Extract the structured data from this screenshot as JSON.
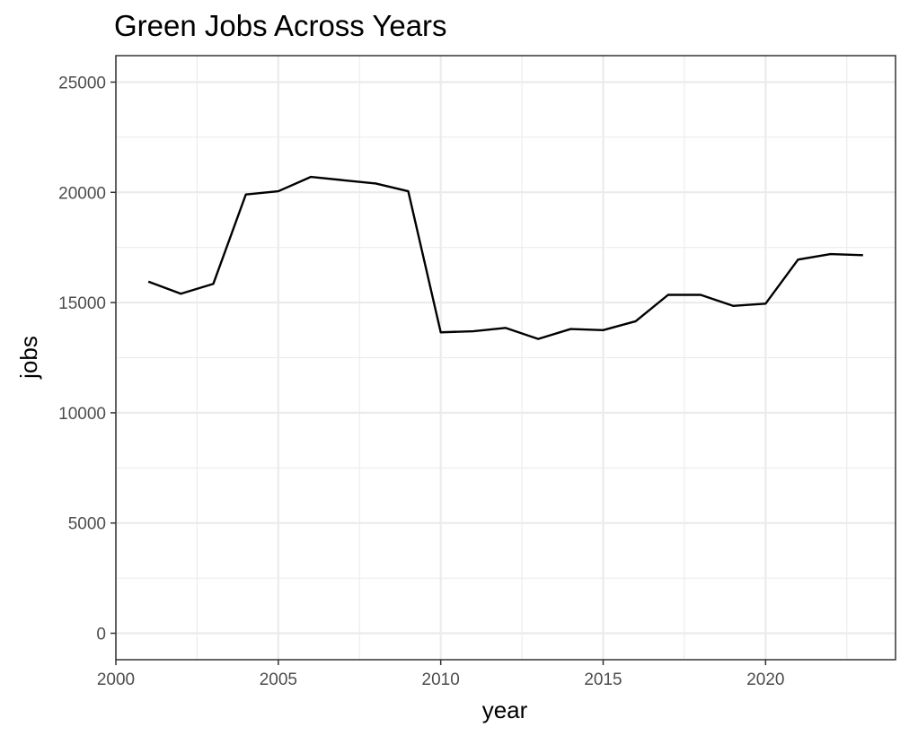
{
  "chart_data": {
    "type": "line",
    "title": "Green Jobs Across Years",
    "xlabel": "year",
    "ylabel": "jobs",
    "xlim": [
      2000,
      2024
    ],
    "ylim": [
      -1200,
      26200
    ],
    "x_ticks": [
      2000,
      2005,
      2010,
      2015,
      2020
    ],
    "x_minor_ticks": [
      2002.5,
      2007.5,
      2012.5,
      2017.5,
      2022.5
    ],
    "y_ticks": [
      0,
      5000,
      10000,
      15000,
      20000,
      25000
    ],
    "y_minor_ticks": [
      2500,
      7500,
      12500,
      17500,
      22500
    ],
    "grid": true,
    "legend": "none",
    "line_color": "#000000",
    "series": [
      {
        "x": [
          2001,
          2002,
          2003,
          2004,
          2005,
          2006,
          2007,
          2008,
          2009,
          2010,
          2011,
          2012,
          2013,
          2014,
          2015,
          2016,
          2017,
          2018,
          2019,
          2020,
          2021,
          2022,
          2023
        ],
        "values": [
          15950,
          15400,
          15850,
          19900,
          20050,
          20700,
          20550,
          20400,
          20050,
          13650,
          13700,
          13850,
          13350,
          13800,
          13750,
          14150,
          15350,
          15350,
          14850,
          14950,
          16950,
          17200,
          17150
        ]
      }
    ]
  }
}
